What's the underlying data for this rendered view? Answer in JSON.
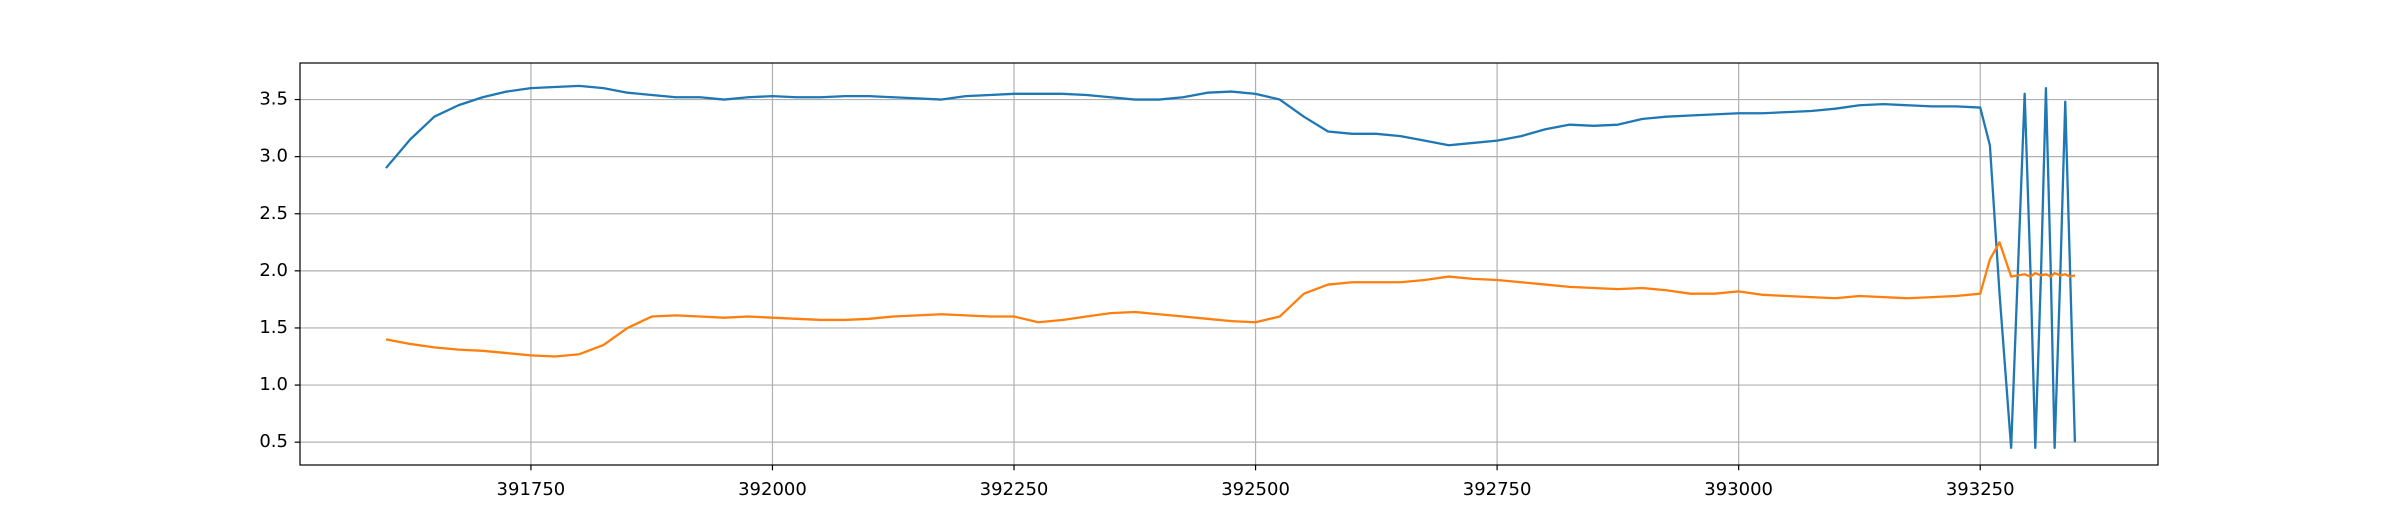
{
  "chart_data": {
    "type": "line",
    "x": [
      391600,
      391625,
      391650,
      391675,
      391700,
      391725,
      391750,
      391775,
      391800,
      391825,
      391850,
      391875,
      391900,
      391925,
      391950,
      391975,
      392000,
      392025,
      392050,
      392075,
      392100,
      392125,
      392150,
      392175,
      392200,
      392225,
      392250,
      392275,
      392300,
      392325,
      392350,
      392375,
      392400,
      392425,
      392450,
      392475,
      392500,
      392525,
      392550,
      392575,
      392600,
      392625,
      392650,
      392675,
      392700,
      392725,
      392750,
      392775,
      392800,
      392825,
      392850,
      392875,
      392900,
      392925,
      392950,
      392975,
      393000,
      393025,
      393050,
      393075,
      393100,
      393125,
      393150,
      393175,
      393200,
      393225,
      393250,
      393260,
      393270,
      393282,
      393289,
      393296,
      393302,
      393307,
      393313,
      393318,
      393323,
      393327,
      393333,
      393338,
      393343,
      393348
    ],
    "series": [
      {
        "color": "#1f77b4",
        "values": [
          2.9,
          3.15,
          3.35,
          3.45,
          3.52,
          3.57,
          3.6,
          3.61,
          3.62,
          3.6,
          3.56,
          3.54,
          3.52,
          3.52,
          3.5,
          3.52,
          3.53,
          3.52,
          3.52,
          3.53,
          3.53,
          3.52,
          3.51,
          3.5,
          3.53,
          3.54,
          3.55,
          3.55,
          3.55,
          3.54,
          3.52,
          3.5,
          3.5,
          3.52,
          3.56,
          3.57,
          3.55,
          3.5,
          3.35,
          3.22,
          3.2,
          3.2,
          3.18,
          3.14,
          3.1,
          3.12,
          3.14,
          3.18,
          3.24,
          3.28,
          3.27,
          3.28,
          3.33,
          3.35,
          3.36,
          3.37,
          3.38,
          3.38,
          3.39,
          3.4,
          3.42,
          3.45,
          3.46,
          3.45,
          3.44,
          3.44,
          3.43,
          3.1,
          1.8,
          0.45,
          2.0,
          3.55,
          2.0,
          0.45,
          2.0,
          3.6,
          2.0,
          0.45,
          2.0,
          3.48,
          2.0,
          0.5
        ]
      },
      {
        "color": "#ff7f0e",
        "values": [
          1.4,
          1.36,
          1.33,
          1.31,
          1.3,
          1.28,
          1.26,
          1.25,
          1.27,
          1.35,
          1.5,
          1.6,
          1.61,
          1.6,
          1.59,
          1.6,
          1.59,
          1.58,
          1.57,
          1.57,
          1.58,
          1.6,
          1.61,
          1.62,
          1.61,
          1.6,
          1.6,
          1.55,
          1.57,
          1.6,
          1.63,
          1.64,
          1.62,
          1.6,
          1.58,
          1.56,
          1.55,
          1.6,
          1.8,
          1.88,
          1.9,
          1.9,
          1.9,
          1.92,
          1.95,
          1.93,
          1.92,
          1.9,
          1.88,
          1.86,
          1.85,
          1.84,
          1.85,
          1.83,
          1.8,
          1.8,
          1.82,
          1.79,
          1.78,
          1.77,
          1.76,
          1.78,
          1.77,
          1.76,
          1.77,
          1.78,
          1.8,
          2.1,
          2.25,
          1.95,
          1.96,
          1.97,
          1.95,
          1.98,
          1.96,
          1.97,
          1.95,
          1.98,
          1.96,
          1.97,
          1.95,
          1.96
        ]
      }
    ],
    "xlim": [
      391511,
      393434
    ],
    "ylim": [
      0.3,
      3.82
    ],
    "xticks": [
      391750,
      392000,
      392250,
      392500,
      392750,
      393000,
      393250
    ],
    "yticks": [
      0.5,
      {
        "value": 1,
        "label": "1.0"
      },
      1.5,
      {
        "value": 2,
        "label": "2.0"
      },
      2.5,
      {
        "value": 3,
        "label": "3.0"
      },
      3.5
    ],
    "grid": true
  }
}
